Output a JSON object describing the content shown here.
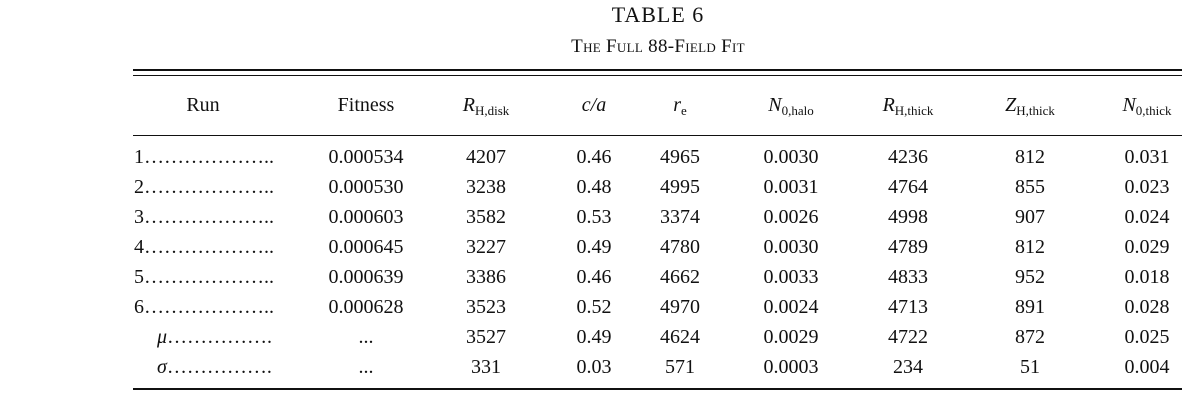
{
  "table": {
    "number": "TABLE 6",
    "caption": "The Full 88-Field Fit",
    "columns": [
      {
        "main": "Run",
        "italic": false,
        "sub": ""
      },
      {
        "main": "Fitness",
        "italic": false,
        "sub": ""
      },
      {
        "main": "R",
        "italic": true,
        "sub": "H,disk"
      },
      {
        "main": "c/a",
        "italic": true,
        "sub": ""
      },
      {
        "main": "r",
        "italic": true,
        "sub": "e"
      },
      {
        "main": "N",
        "italic": true,
        "sub": "0,halo"
      },
      {
        "main": "R",
        "italic": true,
        "sub": "H,thick"
      },
      {
        "main": "Z",
        "italic": true,
        "sub": "H,thick"
      },
      {
        "main": "N",
        "italic": true,
        "sub": "0,thick"
      }
    ],
    "rows": [
      {
        "label": "1",
        "label_italic": false,
        "dots": "………………..",
        "cells": [
          "0.000534",
          "4207",
          "0.46",
          "4965",
          "0.0030",
          "4236",
          "812",
          "0.031"
        ]
      },
      {
        "label": "2",
        "label_italic": false,
        "dots": "………………..",
        "cells": [
          "0.000530",
          "3238",
          "0.48",
          "4995",
          "0.0031",
          "4764",
          "855",
          "0.023"
        ]
      },
      {
        "label": "3",
        "label_italic": false,
        "dots": "………………..",
        "cells": [
          "0.000603",
          "3582",
          "0.53",
          "3374",
          "0.0026",
          "4998",
          "907",
          "0.024"
        ]
      },
      {
        "label": "4",
        "label_italic": false,
        "dots": "………………..",
        "cells": [
          "0.000645",
          "3227",
          "0.49",
          "4780",
          "0.0030",
          "4789",
          "812",
          "0.029"
        ]
      },
      {
        "label": "5",
        "label_italic": false,
        "dots": "………………..",
        "cells": [
          "0.000639",
          "3386",
          "0.46",
          "4662",
          "0.0033",
          "4833",
          "952",
          "0.018"
        ]
      },
      {
        "label": "6",
        "label_italic": false,
        "dots": "………………..",
        "cells": [
          "0.000628",
          "3523",
          "0.52",
          "4970",
          "0.0024",
          "4713",
          "891",
          "0.028"
        ]
      },
      {
        "label": "μ",
        "label_italic": true,
        "dots": "…………….",
        "cells": [
          "...",
          "3527",
          "0.49",
          "4624",
          "0.0029",
          "4722",
          "872",
          "0.025"
        ]
      },
      {
        "label": "σ",
        "label_italic": true,
        "dots": "…………….",
        "cells": [
          "...",
          "331",
          "0.03",
          "571",
          "0.0003",
          "234",
          "51",
          "0.004"
        ]
      }
    ]
  }
}
